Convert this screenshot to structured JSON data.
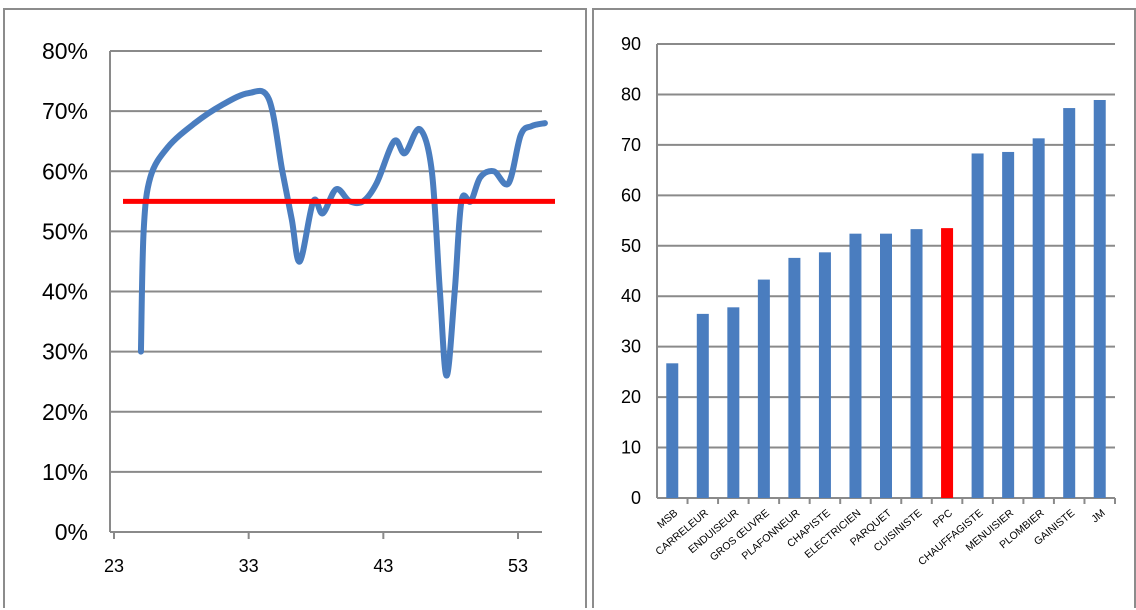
{
  "chart_data": [
    {
      "type": "line",
      "ylim": [
        0,
        0.8
      ],
      "xlim": [
        23,
        55
      ],
      "y_ticks": [
        "0%",
        "10%",
        "20%",
        "30%",
        "40%",
        "50%",
        "60%",
        "70%",
        "80%"
      ],
      "x_ticks": [
        "23",
        "33",
        "43",
        "53"
      ],
      "grid": true,
      "series": [
        {
          "color": "#4a7dbf",
          "points": [
            [
              25,
              0.3
            ],
            [
              25.2,
              0.5
            ],
            [
              25.7,
              0.59
            ],
            [
              27,
              0.64
            ],
            [
              29,
              0.68
            ],
            [
              31,
              0.71
            ],
            [
              33,
              0.73
            ],
            [
              34.5,
              0.72
            ],
            [
              35.5,
              0.6
            ],
            [
              36.2,
              0.52
            ],
            [
              36.8,
              0.45
            ],
            [
              37.8,
              0.55
            ],
            [
              38.5,
              0.53
            ],
            [
              39.5,
              0.57
            ],
            [
              40.5,
              0.55
            ],
            [
              41.5,
              0.55
            ],
            [
              42.5,
              0.58
            ],
            [
              43.8,
              0.65
            ],
            [
              44.6,
              0.63
            ],
            [
              45.7,
              0.67
            ],
            [
              46.6,
              0.6
            ],
            [
              47.2,
              0.4
            ],
            [
              47.7,
              0.26
            ],
            [
              48.3,
              0.4
            ],
            [
              48.8,
              0.55
            ],
            [
              49.5,
              0.55
            ],
            [
              50.2,
              0.59
            ],
            [
              51.2,
              0.6
            ],
            [
              52.3,
              0.58
            ],
            [
              53.2,
              0.66
            ],
            [
              54,
              0.675
            ],
            [
              55,
              0.68
            ]
          ]
        }
      ],
      "reference_line": {
        "y": 0.55,
        "x_range": [
          24,
          55
        ],
        "color": "#ff0000"
      }
    },
    {
      "type": "bar",
      "categories": [
        "MSB",
        "CARRELEUR",
        "ENDUISEUR",
        "GROS ŒUVRE",
        "PLAFONNEUR",
        "CHAPISTE",
        "ELECTRICIEN",
        "PARQUET",
        "CUISINISTE",
        "PPC",
        "CHAUFFAGISTE",
        "MENUISIER",
        "PLOMBIER",
        "GAINISTE",
        "JM"
      ],
      "values": [
        26.7,
        36.5,
        37.8,
        43.3,
        47.6,
        48.7,
        52.4,
        52.4,
        53.3,
        53.5,
        68.3,
        68.6,
        71.3,
        77.3,
        78.9
      ],
      "ylim": [
        0,
        90
      ],
      "y_ticks": [
        "0",
        "10",
        "20",
        "30",
        "40",
        "50",
        "60",
        "70",
        "80",
        "90"
      ],
      "grid": true,
      "bar_color": "#4a7dbf",
      "highlight": {
        "category": "PPC",
        "color": "#ff0000"
      }
    }
  ]
}
